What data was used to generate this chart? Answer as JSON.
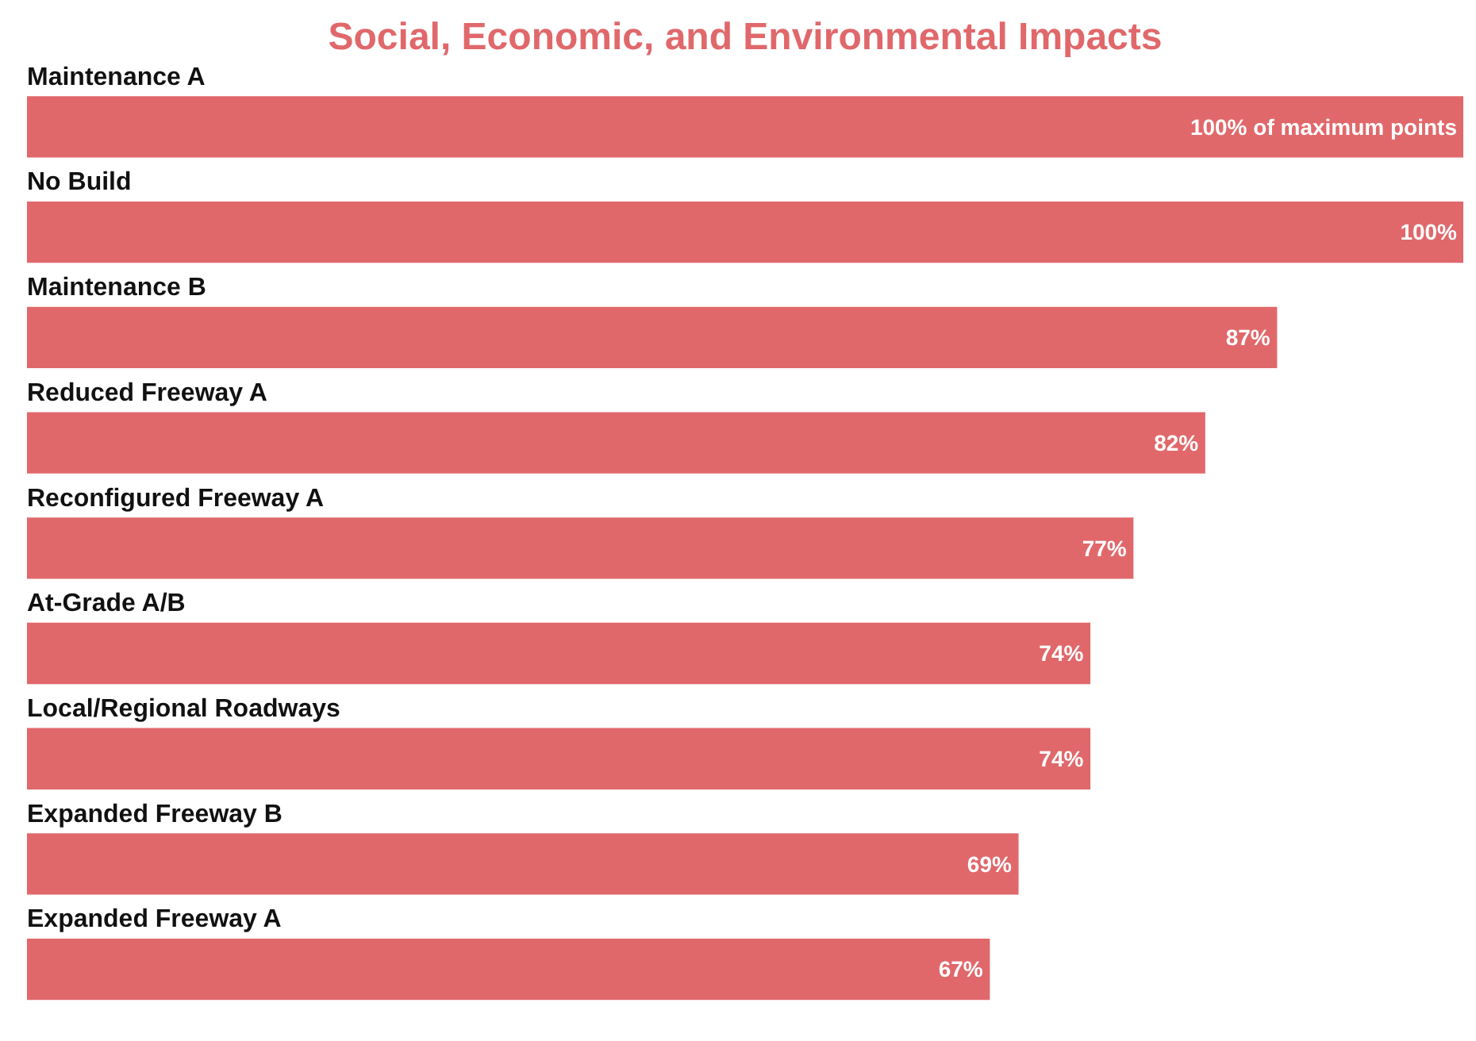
{
  "chart_data": {
    "type": "bar",
    "orientation": "horizontal",
    "title": "Social, Economic, and Environmental Impacts",
    "categories": [
      "Maintenance A",
      "No Build",
      "Maintenance B",
      "Reduced Freeway A",
      "Reconfigured Freeway A",
      "At-Grade A/B",
      "Local/Regional Roadways",
      "Expanded Freeway B",
      "Expanded Freeway A"
    ],
    "values": [
      100,
      100,
      87,
      82,
      77,
      74,
      74,
      69,
      67
    ],
    "value_labels": [
      "100% of maximum points",
      "100%",
      "87%",
      "82%",
      "77%",
      "74%",
      "74%",
      "69%",
      "67%"
    ],
    "color": "#e0686b"
  }
}
